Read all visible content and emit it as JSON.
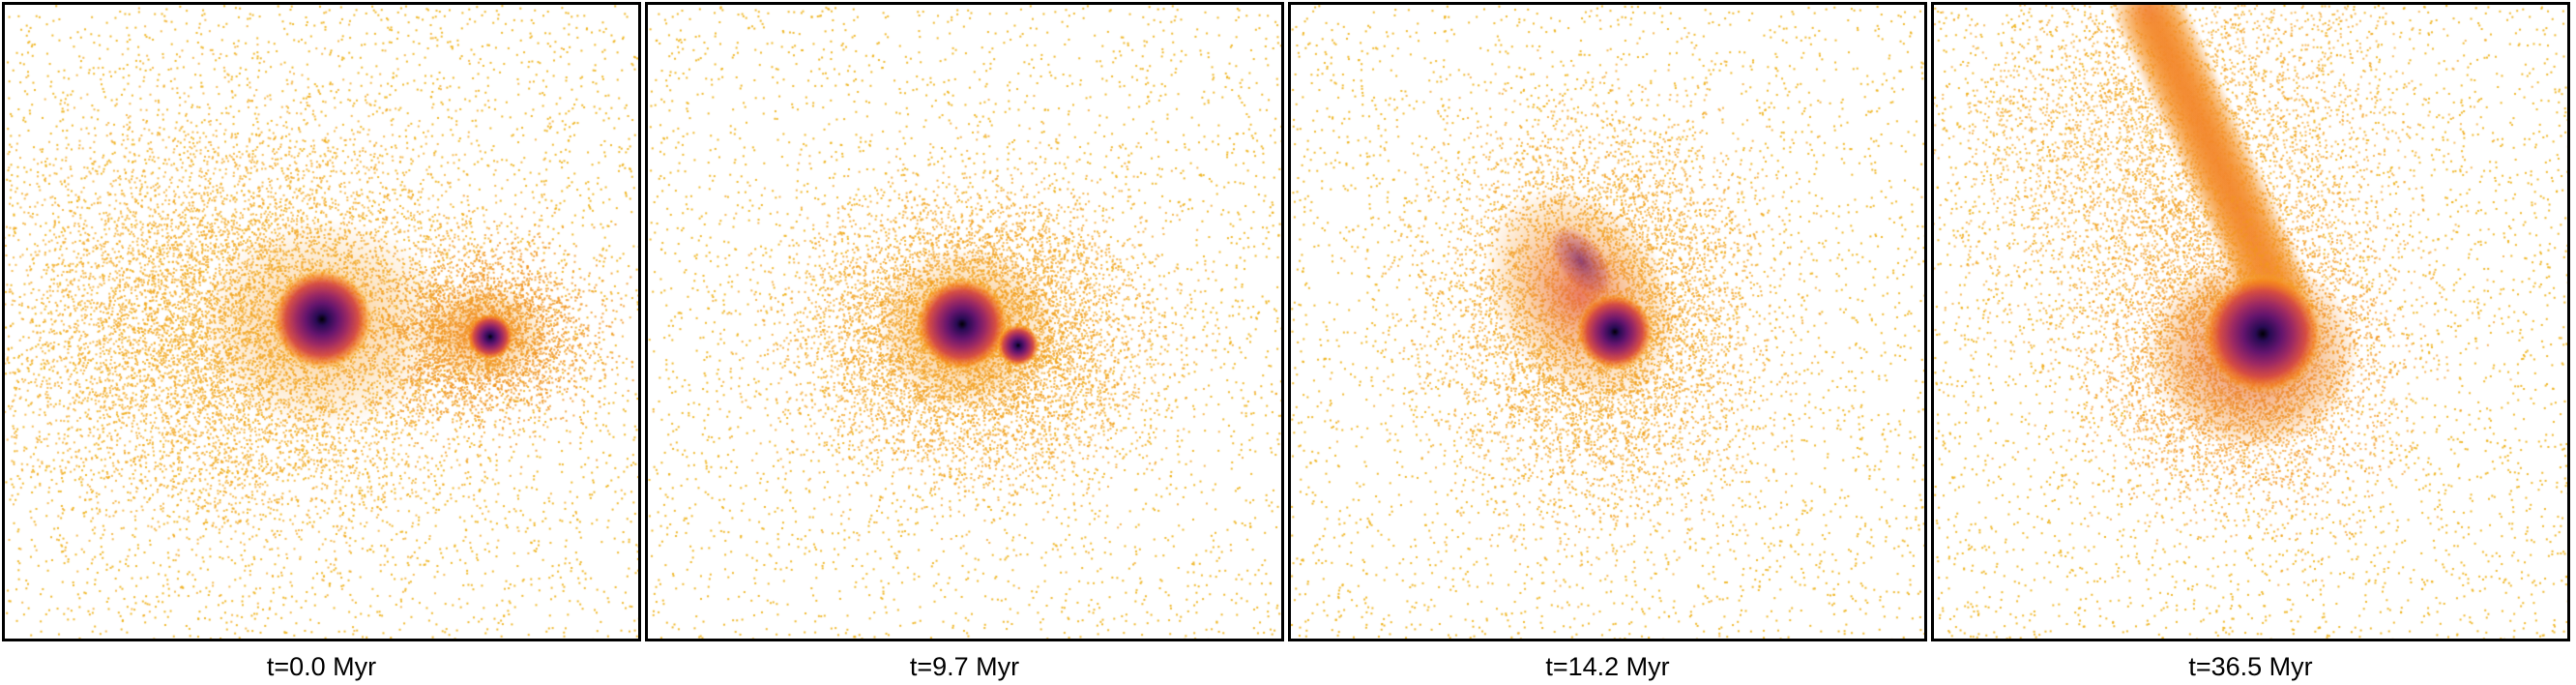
{
  "figure": {
    "panels": [
      {
        "id": "p1",
        "label": "t=0.0 Myr"
      },
      {
        "id": "p2",
        "label": "t=9.7 Myr"
      },
      {
        "id": "p3",
        "label": "t=14.2 Myr"
      },
      {
        "id": "p4",
        "label": "t=36.5 Myr"
      }
    ],
    "colors": {
      "sparse": "#f2b418",
      "mid": "#f08a1c",
      "dense": "#c43a5a",
      "core": "#0a0418",
      "frame": "#000000",
      "background": "#ffffff"
    },
    "colormap": "inferno"
  }
}
